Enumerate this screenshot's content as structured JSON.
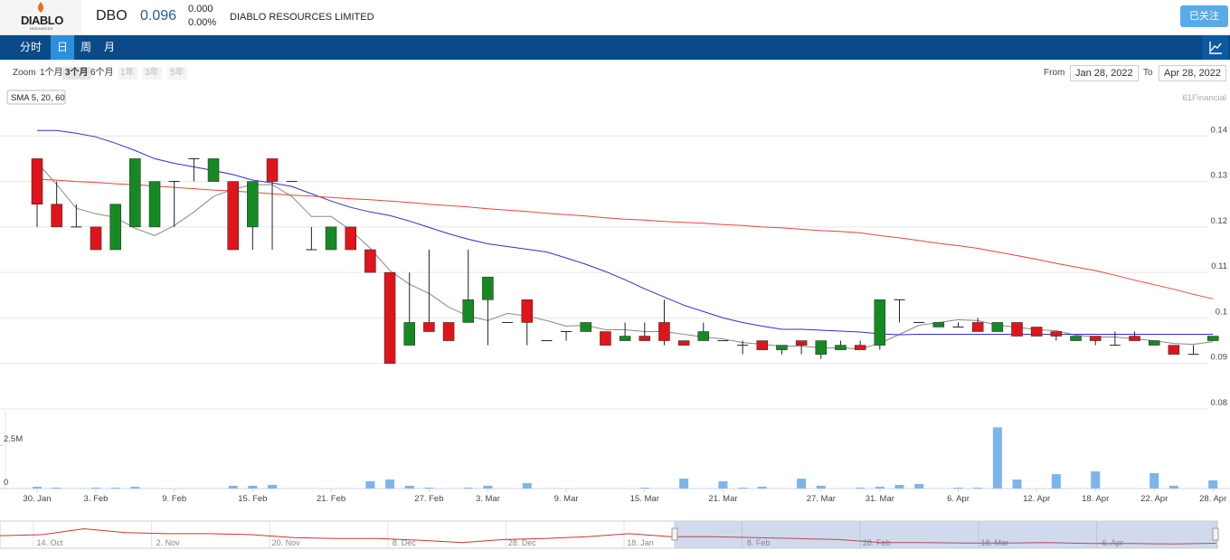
{
  "header": {
    "logo": "DIABLO",
    "logo_sub": "RESOURCES",
    "ticker": "DBO",
    "price": "0.096",
    "change": "0.000",
    "change_pct": "0.00%",
    "company": "DIABLO RESOURCES LIMITED",
    "follow_button": "已关注"
  },
  "nav": {
    "tabs": [
      "分时",
      "日",
      "周",
      "月"
    ]
  },
  "toolbar": {
    "zoom_label": "Zoom",
    "zoom_options": [
      "1个月",
      "3个月",
      "6个月",
      "1年",
      "3年",
      "5年"
    ],
    "from_label": "From",
    "from": "Jan 28, 2022",
    "to_label": "To",
    "to": "Apr 28, 2022"
  },
  "chart_data": {
    "type": "candlestick",
    "legend_label": "SMA 5, 20, 60",
    "credits": "61Financial",
    "categories": [
      "30. Jan",
      null,
      null,
      "3. Feb",
      null,
      null,
      null,
      "9. Feb",
      null,
      null,
      null,
      "15. Feb",
      null,
      null,
      null,
      "21. Feb",
      null,
      null,
      null,
      null,
      "27. Feb",
      null,
      null,
      "3. Mar",
      null,
      null,
      null,
      "9. Mar",
      null,
      null,
      null,
      "15. Mar",
      null,
      null,
      null,
      "21. Mar",
      null,
      null,
      null,
      null,
      "27. Mar",
      null,
      null,
      "31. Mar",
      null,
      null,
      null,
      "6. Apr",
      null,
      null,
      null,
      "12. Apr",
      null,
      null,
      "18. Apr",
      null,
      null,
      "22. Apr",
      null,
      null,
      "28. Apr"
    ],
    "open": [
      0.135,
      0.125,
      0.12,
      0.12,
      0.115,
      0.12,
      0.12,
      0.13,
      0.135,
      0.13,
      0.13,
      0.12,
      0.135,
      0.13,
      0.115,
      0.115,
      0.12,
      0.115,
      0.11,
      0.094,
      0.099,
      0.099,
      0.099,
      0.104,
      0.099,
      0.104,
      0.095,
      0.097,
      0.097,
      0.097,
      0.095,
      0.096,
      0.099,
      0.095,
      0.095,
      0.095,
      0.094,
      0.095,
      0.093,
      0.095,
      0.092,
      0.093,
      0.094,
      0.094,
      0.104,
      0.099,
      0.098,
      0.098,
      0.099,
      0.097,
      0.099,
      0.098,
      0.097,
      0.095,
      0.096,
      0.094,
      0.096,
      0.094,
      0.094,
      0.092,
      0.095
    ],
    "high": [
      0.135,
      0.13,
      0.125,
      0.12,
      0.125,
      0.135,
      0.13,
      0.13,
      0.135,
      0.135,
      0.13,
      0.13,
      0.135,
      0.13,
      0.12,
      0.12,
      0.12,
      0.115,
      0.11,
      0.11,
      0.115,
      0.099,
      0.115,
      0.109,
      0.099,
      0.104,
      0.095,
      0.097,
      0.099,
      0.097,
      0.099,
      0.099,
      0.104,
      0.095,
      0.099,
      0.095,
      0.095,
      0.095,
      0.094,
      0.095,
      0.095,
      0.095,
      0.095,
      0.104,
      0.104,
      0.099,
      0.099,
      0.099,
      0.1,
      0.099,
      0.099,
      0.098,
      0.097,
      0.096,
      0.096,
      0.097,
      0.097,
      0.095,
      0.094,
      0.094,
      0.096
    ],
    "low": [
      0.12,
      0.12,
      0.12,
      0.115,
      0.115,
      0.12,
      0.12,
      0.12,
      0.13,
      0.13,
      0.115,
      0.115,
      0.115,
      0.13,
      0.115,
      0.115,
      0.115,
      0.11,
      0.09,
      0.094,
      0.097,
      0.095,
      0.099,
      0.094,
      0.099,
      0.094,
      0.095,
      0.095,
      0.097,
      0.094,
      0.095,
      0.095,
      0.094,
      0.094,
      0.095,
      0.095,
      0.092,
      0.093,
      0.092,
      0.092,
      0.091,
      0.093,
      0.093,
      0.093,
      0.099,
      0.099,
      0.098,
      0.098,
      0.097,
      0.097,
      0.096,
      0.096,
      0.095,
      0.095,
      0.094,
      0.094,
      0.095,
      0.094,
      0.092,
      0.092,
      0.095
    ],
    "close": [
      0.125,
      0.12,
      0.12,
      0.115,
      0.125,
      0.135,
      0.13,
      0.13,
      0.135,
      0.135,
      0.115,
      0.13,
      0.13,
      0.13,
      0.115,
      0.12,
      0.115,
      0.11,
      0.09,
      0.099,
      0.097,
      0.095,
      0.104,
      0.109,
      0.099,
      0.099,
      0.095,
      0.097,
      0.099,
      0.094,
      0.096,
      0.095,
      0.095,
      0.094,
      0.097,
      0.095,
      0.094,
      0.093,
      0.094,
      0.094,
      0.095,
      0.094,
      0.093,
      0.104,
      0.104,
      0.099,
      0.099,
      0.098,
      0.097,
      0.099,
      0.096,
      0.096,
      0.096,
      0.096,
      0.095,
      0.094,
      0.095,
      0.095,
      0.092,
      0.092,
      0.096
    ],
    "up_color": "#168a22",
    "down_color": "#e0141b",
    "flat_color": "#222222",
    "overlays": [
      {
        "color": "#888888",
        "values": [
          0.1342,
          0.1293,
          0.1241,
          0.1229,
          0.1221,
          0.1197,
          0.1181,
          0.1203,
          0.1233,
          0.1267,
          0.1283,
          0.1293,
          0.1293,
          0.1267,
          0.1223,
          0.1223,
          0.1193,
          0.1153,
          0.1104,
          0.1074,
          0.1054,
          0.1024,
          0.1004,
          0.0994,
          0.101,
          0.1004,
          0.0994,
          0.0982,
          0.0984,
          0.0974,
          0.0974,
          0.097,
          0.097,
          0.0964,
          0.0958,
          0.0954,
          0.0946,
          0.0942,
          0.0938,
          0.0938,
          0.0934,
          0.0934,
          0.0932,
          0.0944,
          0.0964,
          0.0984,
          0.099,
          0.0996,
          0.0994,
          0.0984,
          0.098,
          0.0974,
          0.0972,
          0.0962,
          0.0958,
          0.0958,
          0.0954,
          0.095,
          0.0944,
          0.0942,
          0.0948
        ]
      },
      {
        "color": "#2f2fd0",
        "values": [
          0.1412,
          0.1412,
          0.1406,
          0.1398,
          0.1384,
          0.1368,
          0.135,
          0.134,
          0.1332,
          0.1324,
          0.1315,
          0.1303,
          0.1297,
          0.1289,
          0.1273,
          0.1257,
          0.1243,
          0.1233,
          0.1225,
          0.1213,
          0.1199,
          0.1185,
          0.1173,
          0.1163,
          0.1157,
          0.1151,
          0.1145,
          0.1132,
          0.1118,
          0.1102,
          0.1084,
          0.1064,
          0.1046,
          0.1028,
          0.1014,
          0.1,
          0.099,
          0.0982,
          0.0975,
          0.0975,
          0.0973,
          0.0971,
          0.0969,
          0.0965,
          0.0963,
          0.0964,
          0.0964,
          0.0964,
          0.0964,
          0.0964,
          0.0964,
          0.0964,
          0.0964,
          0.0964,
          0.0964,
          0.0964,
          0.0964,
          0.0964,
          0.0964,
          0.0964,
          0.0964
        ]
      },
      {
        "color": "#e8453c",
        "values": [
          0.1305,
          0.1303,
          0.13,
          0.1298,
          0.1295,
          0.1293,
          0.129,
          0.1287,
          0.1284,
          0.1281,
          0.1279,
          0.1276,
          0.1273,
          0.127,
          0.1268,
          0.1265,
          0.1262,
          0.126,
          0.1257,
          0.1254,
          0.125,
          0.1247,
          0.1244,
          0.124,
          0.1237,
          0.1234,
          0.123,
          0.1227,
          0.1224,
          0.122,
          0.1217,
          0.1215,
          0.1212,
          0.121,
          0.1208,
          0.1205,
          0.1203,
          0.12,
          0.1198,
          0.1195,
          0.1192,
          0.119,
          0.1187,
          0.1181,
          0.1176,
          0.117,
          0.1164,
          0.1159,
          0.1153,
          0.1145,
          0.1137,
          0.1129,
          0.112,
          0.1112,
          0.1104,
          0.1094,
          0.1083,
          0.1073,
          0.1063,
          0.1052,
          0.1042
        ]
      }
    ],
    "ylim": [
      0.08,
      0.15
    ],
    "yticks": [
      0.08,
      0.09,
      {
        "value": 0.1,
        "label": "0.1"
      },
      0.11,
      0.12,
      0.13,
      0.14
    ],
    "grid": true,
    "volume": {
      "color": "#7cb5ec",
      "values": [
        100000,
        50000,
        0,
        50000,
        50000,
        100000,
        0,
        0,
        0,
        0,
        160000,
        160000,
        210000,
        0,
        0,
        0,
        0,
        420000,
        520000,
        160000,
        50000,
        0,
        50000,
        160000,
        0,
        310000,
        0,
        0,
        0,
        0,
        0,
        50000,
        0,
        570000,
        0,
        420000,
        50000,
        100000,
        0,
        570000,
        160000,
        0,
        50000,
        100000,
        210000,
        260000,
        0,
        50000,
        50000,
        3540000,
        520000,
        0,
        830000,
        0,
        990000,
        0,
        0,
        890000,
        160000,
        0,
        470000
      ],
      "ylim": [
        0,
        4500000
      ],
      "yticks": [
        0,
        {
          "value": 2500000,
          "label": "2.5M"
        }
      ]
    },
    "navigator": {
      "labels": [
        "14. Oct",
        "2. Nov",
        "20. Nov",
        "8. Dec",
        "28. Dec",
        "18. Jan",
        "8. Feb",
        "28. Feb",
        "18. Mar",
        "6. Apr"
      ],
      "color": "#d0342c",
      "ylim": [
        0.08,
        0.2
      ],
      "values": [
        0.135,
        0.14,
        0.17,
        0.15,
        0.145,
        0.145,
        0.14,
        0.125,
        0.12,
        0.12,
        0.112,
        0.1,
        0.115,
        0.12,
        0.13,
        0.145,
        0.13,
        0.13,
        0.125,
        0.12,
        0.115,
        0.1,
        0.1,
        0.097,
        0.097,
        0.1,
        0.095,
        0.095,
        0.093,
        0.096
      ]
    }
  }
}
